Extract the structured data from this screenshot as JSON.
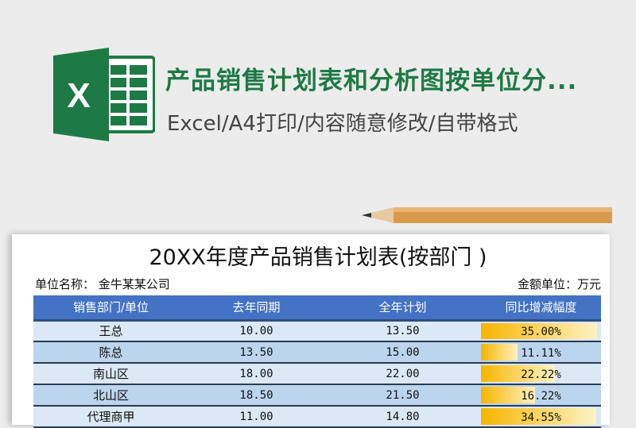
{
  "banner": {
    "title": "产品销售计划表和分析图按单位分...",
    "subtitle": "Excel/A4打印/内容随意修改/自带格式",
    "logo_letter": "X",
    "brand_color": "#1e7a45"
  },
  "document": {
    "title": "20XX年度产品销售计划表(按部门 )",
    "unit_name_label": "单位名称：",
    "unit_name": "金牛某某公司",
    "currency_label": "金额单位：万元",
    "headers": [
      "销售部门/单位",
      "去年同期",
      "全年计划",
      "同比增减幅度"
    ],
    "rows": [
      {
        "name": "王总",
        "last": "10.00",
        "plan": "13.50",
        "growth": "35.00%",
        "fill": 35.0
      },
      {
        "name": "陈总",
        "last": "13.50",
        "plan": "15.00",
        "growth": "11.11%",
        "fill": 11.11
      },
      {
        "name": "南山区",
        "last": "18.00",
        "plan": "22.00",
        "growth": "22.22%",
        "fill": 22.22
      },
      {
        "name": "北山区",
        "last": "18.50",
        "plan": "21.50",
        "growth": "16.22%",
        "fill": 16.22
      },
      {
        "name": "代理商甲",
        "last": "11.00",
        "plan": "14.80",
        "growth": "34.55%",
        "fill": 34.55
      }
    ],
    "header_color": "#4472c4",
    "bar_color": "#f7b500"
  }
}
